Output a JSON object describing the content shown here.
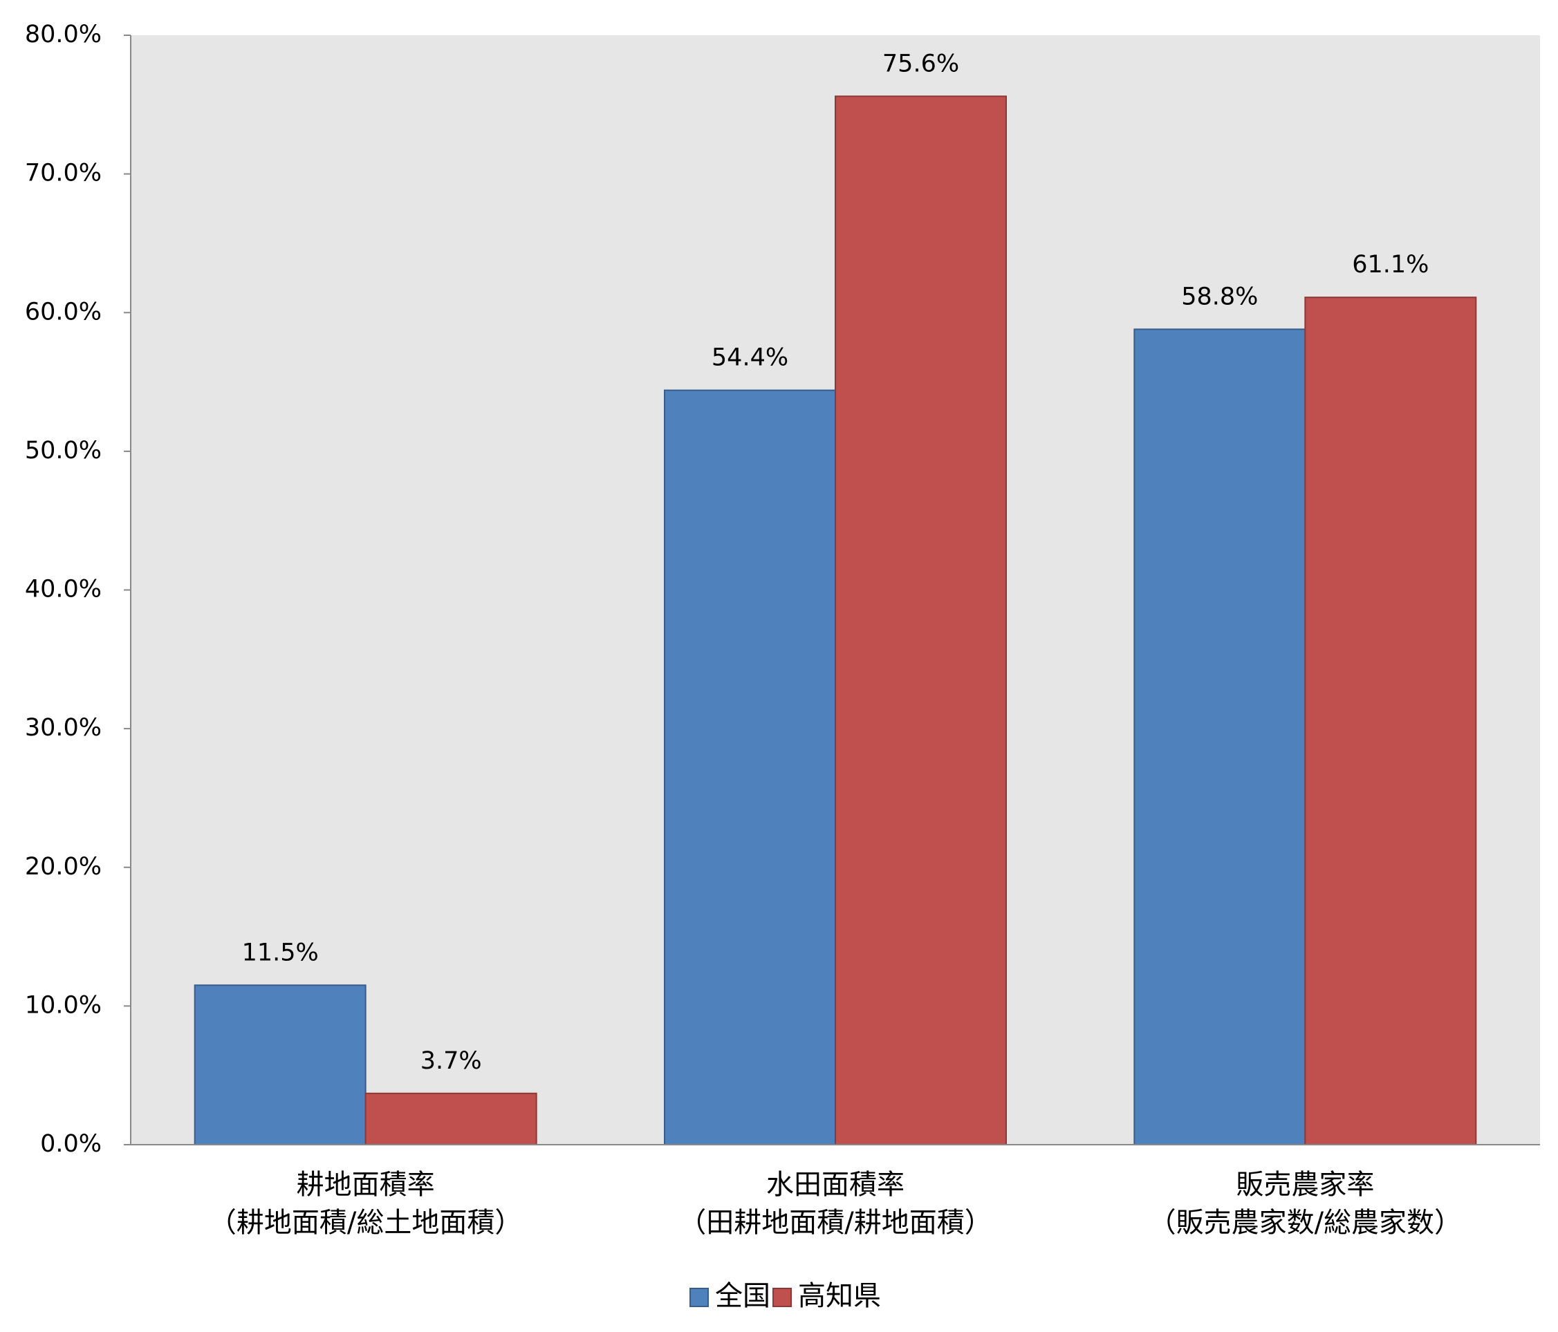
{
  "chart_data": {
    "type": "bar",
    "categories": [
      [
        "耕地面積率",
        "（耕地面積/総土地面積）"
      ],
      [
        "水田面積率",
        "（田耕地面積/耕地面積）"
      ],
      [
        "販売農家率",
        "（販売農家数/総農家数）"
      ]
    ],
    "series": [
      {
        "name": "全国",
        "color": "#4f81bd",
        "values": [
          11.5,
          54.4,
          58.8
        ],
        "value_labels": [
          "11.5%",
          "54.4%",
          "58.8%"
        ]
      },
      {
        "name": "高知県",
        "color": "#c0504d",
        "values": [
          3.7,
          75.6,
          61.1
        ],
        "value_labels": [
          "3.7%",
          "75.6%",
          "61.1%"
        ]
      }
    ],
    "ylim": [
      0,
      80
    ],
    "yticks": [
      {
        "value": 0,
        "label": "0.0%"
      },
      {
        "value": 10,
        "label": "10.0%"
      },
      {
        "value": 20,
        "label": "20.0%"
      },
      {
        "value": 30,
        "label": "30.0%"
      },
      {
        "value": 40,
        "label": "40.0%"
      },
      {
        "value": 50,
        "label": "50.0%"
      },
      {
        "value": 60,
        "label": "60.0%"
      },
      {
        "value": 70,
        "label": "70.0%"
      },
      {
        "value": 80,
        "label": "80.0%"
      }
    ],
    "legend": "bottom"
  }
}
